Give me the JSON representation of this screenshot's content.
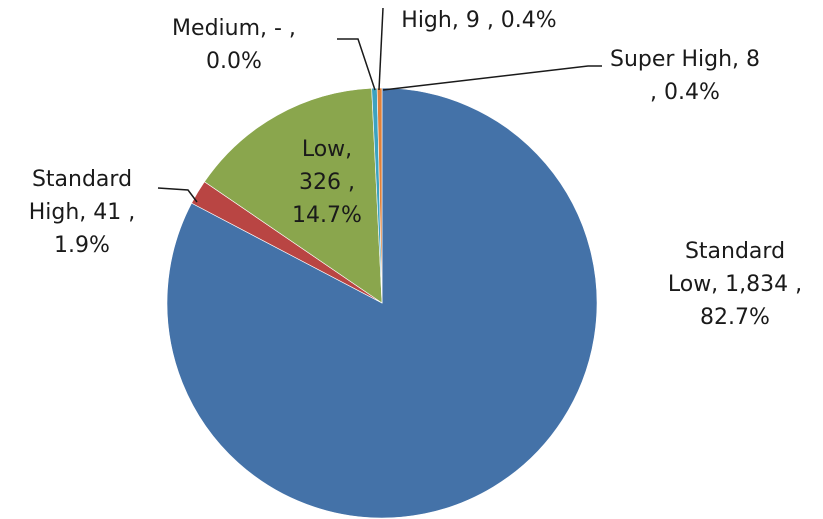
{
  "chart_data": {
    "type": "pie",
    "title": "",
    "slices": [
      {
        "category": "Standard Low",
        "value": 1834,
        "percent": 82.7,
        "color": "#4472a8",
        "label_lines": [
          "Standard",
          "Low,  1,834 ,",
          "82.7%"
        ]
      },
      {
        "category": "Standard High",
        "value": 41,
        "percent": 1.9,
        "color": "#b94543",
        "label_lines": [
          "Standard",
          "High,  41 ,",
          "1.9%"
        ]
      },
      {
        "category": "Low",
        "value": 326,
        "percent": 14.7,
        "color": "#8aa64d",
        "label_lines": [
          "Low,",
          "326 ,",
          "14.7%"
        ]
      },
      {
        "category": "Medium",
        "value": 0,
        "value_display": "-",
        "percent": 0.0,
        "color": "#7b5fa3",
        "label_lines": [
          "Medium,  -    ,",
          "0.0%"
        ]
      },
      {
        "category": "High",
        "value": 9,
        "percent": 0.4,
        "color": "#3da2bf",
        "label_lines": [
          "High,  9 , 0.4%"
        ]
      },
      {
        "category": "Super High",
        "value": 8,
        "percent": 0.4,
        "color": "#e0813a",
        "label_lines": [
          "Super High,  8",
          ", 0.4%"
        ]
      }
    ],
    "start_angle": "12 o'clock",
    "direction": "counter-clockwise from Super High ending at Standard Low",
    "legend": "none (data labels with leader lines)"
  }
}
